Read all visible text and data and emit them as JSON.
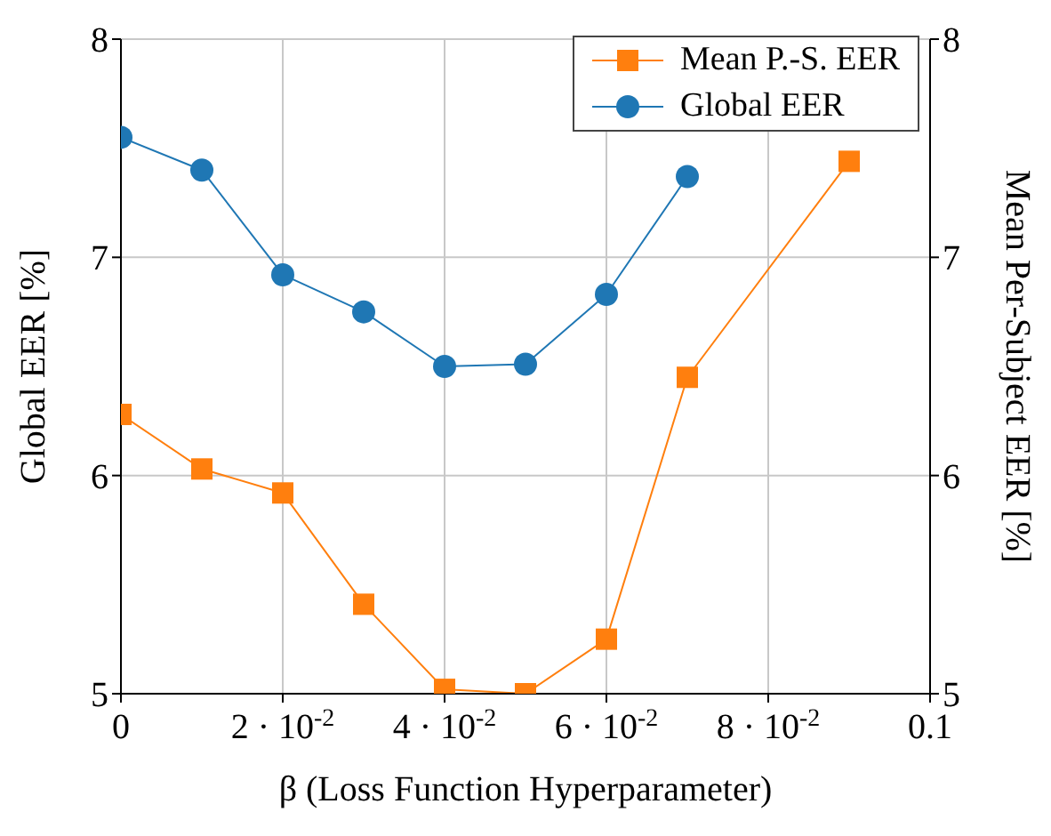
{
  "chart_data": {
    "type": "line",
    "xlabel": "β (Loss Function Hyperparameter)",
    "ylabel": "Global EER [%]",
    "y2label": "Mean Per-Subject EER [%]",
    "series": [
      {
        "name": "Mean P.-S. EER",
        "color": "#ff7f0e",
        "marker": "square",
        "x": [
          0,
          0.01,
          0.02,
          0.03,
          0.04,
          0.05,
          0.06,
          0.07,
          0.09
        ],
        "values": [
          6.28,
          6.03,
          5.92,
          5.41,
          5.02,
          5.0,
          5.25,
          6.45,
          7.44
        ]
      },
      {
        "name": "Global EER",
        "color": "#1f77b4",
        "marker": "circle",
        "x": [
          0,
          0.01,
          0.02,
          0.03,
          0.04,
          0.05,
          0.06,
          0.07
        ],
        "values": [
          7.55,
          7.4,
          6.92,
          6.75,
          6.5,
          6.51,
          6.83,
          7.37
        ]
      }
    ],
    "xlim": [
      0,
      0.1
    ],
    "xticks": [
      0,
      {
        "value": 0.02,
        "label": "2 · 10$^{-2}$"
      },
      {
        "value": 0.04,
        "label": "4 · 10$^{-2}$"
      },
      {
        "value": 0.06,
        "label": "6 · 10$^{-2}$"
      },
      {
        "value": 0.08,
        "label": "8 · 10$^{-2}$"
      },
      0.1
    ],
    "ylim": [
      5,
      8
    ],
    "yticks": [
      5,
      6,
      7,
      8
    ],
    "y2lim": [
      5,
      8
    ],
    "y2ticks": [
      5,
      6,
      7,
      8
    ],
    "grid": true,
    "legend": "top right",
    "line_style": "solid"
  }
}
